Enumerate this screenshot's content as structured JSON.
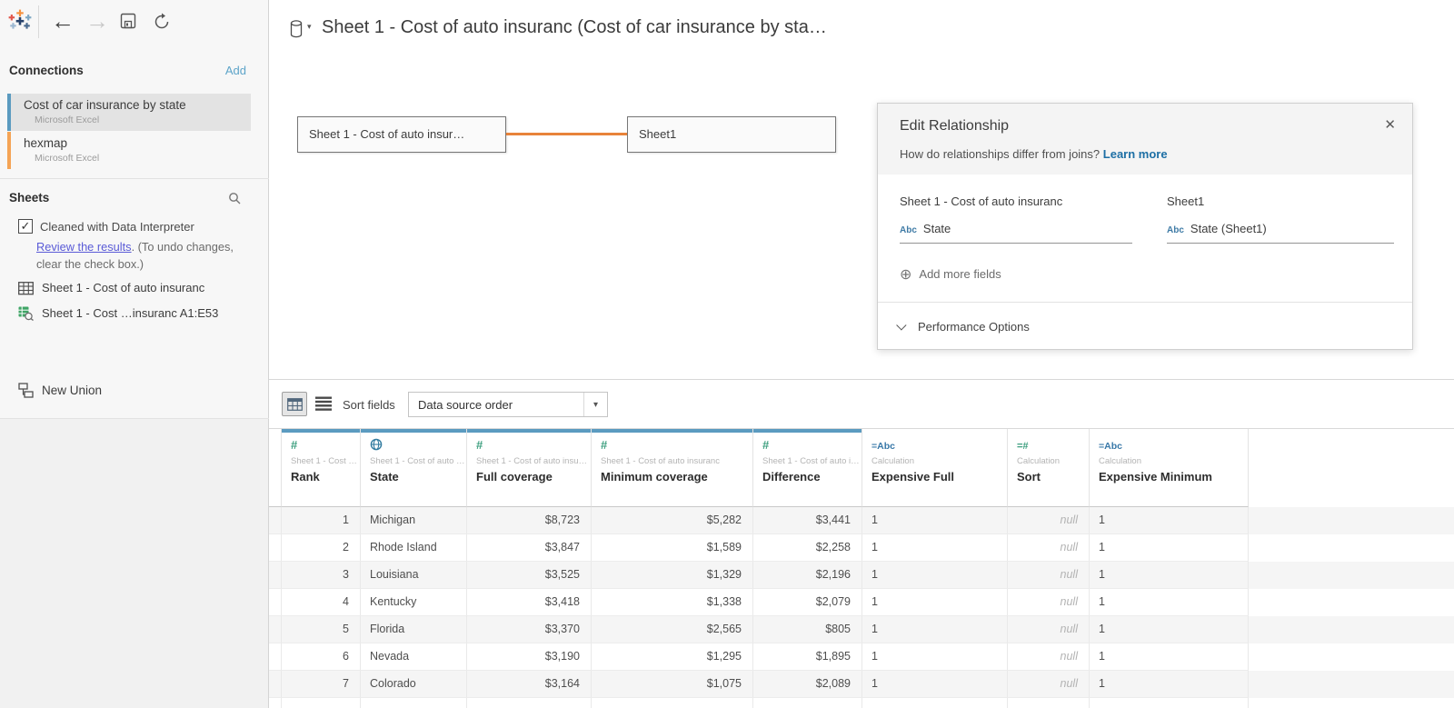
{
  "toolbar": {
    "back_arrow": "←",
    "forward_arrow": "→"
  },
  "header": {
    "title": "Sheet 1 - Cost of auto insuranc (Cost of car insurance by sta…"
  },
  "connections": {
    "title": "Connections",
    "add_label": "Add",
    "items": [
      {
        "name": "Cost of car insurance by state",
        "subtitle": "Microsoft Excel",
        "accent": "#5b9bc0",
        "selected": true
      },
      {
        "name": "hexmap",
        "subtitle": "Microsoft Excel",
        "accent": "#f5a455",
        "selected": false
      }
    ]
  },
  "sheets": {
    "title": "Sheets",
    "interpreter_label": "Cleaned with Data Interpreter",
    "review_link": "Review the results",
    "review_rest": ". (To undo changes,",
    "review_line2": "clear the check box.)",
    "items": [
      {
        "label": "Sheet 1 - Cost of auto insuranc"
      },
      {
        "label": "Sheet 1 - Cost …insuranc A1:E53"
      }
    ],
    "new_union_label": "New Union"
  },
  "canvas": {
    "left_table_label": "Sheet 1 - Cost of auto insur…",
    "right_table_label": "Sheet1"
  },
  "relationship": {
    "title": "Edit Relationship",
    "question": "How do relationships differ from joins?",
    "learn_more_label": "Learn more",
    "left_table": "Sheet 1 - Cost of auto insuranc",
    "right_table": "Sheet1",
    "left_field_type": "Abc",
    "left_field": "State",
    "right_field_type": "Abc",
    "right_field": "State (Sheet1)",
    "add_fields_label": "Add more fields",
    "performance_label": "Performance Options"
  },
  "grid_toolbar": {
    "sort_fields_label": "Sort fields",
    "sort_value": "Data source order",
    "caret": "▾"
  },
  "table": {
    "columns": [
      {
        "icon": "number-icon",
        "icon_text": "#",
        "source": "Sheet 1 - Cost …",
        "name": "Rank",
        "bar": true,
        "align": "right"
      },
      {
        "icon": "globe-icon",
        "icon_text": "",
        "source": "Sheet 1 - Cost of auto …",
        "name": "State",
        "bar": true,
        "align": "left"
      },
      {
        "icon": "number-icon",
        "icon_text": "#",
        "source": "Sheet 1 - Cost of auto insu…",
        "name": "Full coverage",
        "bar": true,
        "align": "right"
      },
      {
        "icon": "number-icon",
        "icon_text": "#",
        "source": "Sheet 1 - Cost of auto insuranc",
        "name": "Minimum coverage",
        "bar": true,
        "align": "right"
      },
      {
        "icon": "number-icon",
        "icon_text": "#",
        "source": "Sheet 1 - Cost of auto i…",
        "name": "Difference",
        "bar": true,
        "align": "right"
      },
      {
        "icon": "calculation-string-icon",
        "icon_text": "=Abc",
        "source": "Calculation",
        "name": "Expensive Full",
        "bar": false,
        "align": "left"
      },
      {
        "icon": "calculation-number-icon",
        "icon_text": "=#",
        "source": "Calculation",
        "name": "Sort",
        "bar": false,
        "align": "right"
      },
      {
        "icon": "calculation-string-icon",
        "icon_text": "=Abc",
        "source": "Calculation",
        "name": "Expensive Minimum",
        "bar": false,
        "align": "left"
      }
    ],
    "rows": [
      [
        "1",
        "Michigan",
        "$8,723",
        "$5,282",
        "$3,441",
        "1",
        "null",
        "1"
      ],
      [
        "2",
        "Rhode Island",
        "$3,847",
        "$1,589",
        "$2,258",
        "1",
        "null",
        "1"
      ],
      [
        "3",
        "Louisiana",
        "$3,525",
        "$1,329",
        "$2,196",
        "1",
        "null",
        "1"
      ],
      [
        "4",
        "Kentucky",
        "$3,418",
        "$1,338",
        "$2,079",
        "1",
        "null",
        "1"
      ],
      [
        "5",
        "Florida",
        "$3,370",
        "$2,565",
        "$805",
        "1",
        "null",
        "1"
      ],
      [
        "6",
        "Nevada",
        "$3,190",
        "$1,295",
        "$1,895",
        "1",
        "null",
        "1"
      ],
      [
        "7",
        "Colorado",
        "$3,164",
        "$1,075",
        "$2,089",
        "1",
        "null",
        "1"
      ]
    ]
  },
  "colors": {
    "header_bar_blue": "#5b9bc0",
    "connection_blue": "#5b9bc0",
    "connection_orange": "#f5a455",
    "noodle_orange": "#e8833a",
    "icon_green": "#3fa080",
    "icon_blue": "#3878a8",
    "globe_blue": "#337ca0",
    "link_light_blue": "#5da4c9",
    "learn_more_blue": "#1d6fa5",
    "review_link_blue": "#5a5bd7",
    "row_stripe": "#f5f5f5"
  }
}
